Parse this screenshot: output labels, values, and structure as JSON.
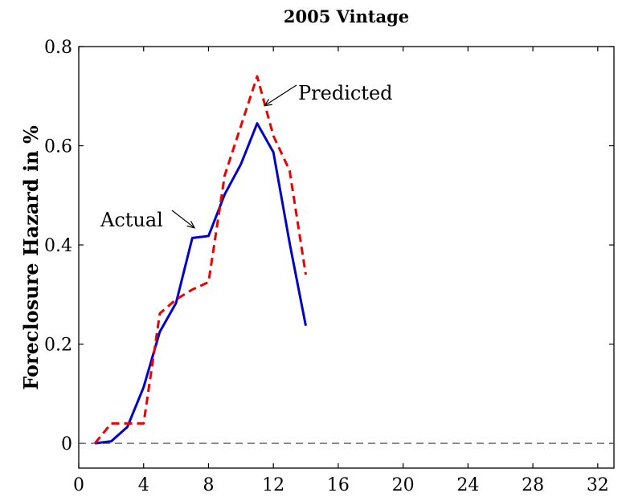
{
  "chart_data": {
    "type": "line",
    "title": "2005 Vintage",
    "xlabel": "",
    "ylabel": "Foreclosure Hazard in %",
    "xlim": [
      0,
      33
    ],
    "ylim": [
      -0.05,
      0.8
    ],
    "xticks": [
      0,
      4,
      8,
      12,
      16,
      20,
      24,
      28,
      32
    ],
    "yticks": [
      0,
      0.2,
      0.4,
      0.6,
      0.8
    ],
    "xtick_labels": [
      "0",
      "4",
      "8",
      "12",
      "16",
      "20",
      "24",
      "28",
      "32"
    ],
    "ytick_labels": [
      "0",
      "0.2",
      "0.4",
      "0.6",
      "0.8"
    ],
    "grid": false,
    "legend": "none",
    "series": [
      {
        "name": "Actual",
        "color": "#0000cc",
        "style": "solid",
        "x": [
          1,
          2,
          3,
          4,
          5,
          6,
          7,
          8,
          9,
          10,
          11,
          12,
          13,
          14
        ],
        "values": [
          0.0,
          0.004,
          0.033,
          0.113,
          0.225,
          0.283,
          0.414,
          0.418,
          0.502,
          0.563,
          0.645,
          0.587,
          0.404,
          0.237
        ]
      },
      {
        "name": "Predicted",
        "color": "#ee0000",
        "style": "dashed",
        "x": [
          1,
          2,
          3,
          4,
          5,
          6,
          7,
          8,
          9,
          10,
          11,
          12,
          13,
          14
        ],
        "values": [
          0.0,
          0.04,
          0.04,
          0.04,
          0.262,
          0.29,
          0.31,
          0.325,
          0.54,
          0.64,
          0.74,
          0.62,
          0.55,
          0.34
        ]
      }
    ],
    "reference_line": {
      "y": 0,
      "style": "dashed",
      "color": "#555555"
    },
    "annotations": [
      {
        "text": "Actual",
        "points_to": {
          "x": 7.1,
          "y": 0.416
        }
      },
      {
        "text": "Predicted",
        "points_to": {
          "x": 11.3,
          "y": 0.68
        }
      }
    ]
  }
}
